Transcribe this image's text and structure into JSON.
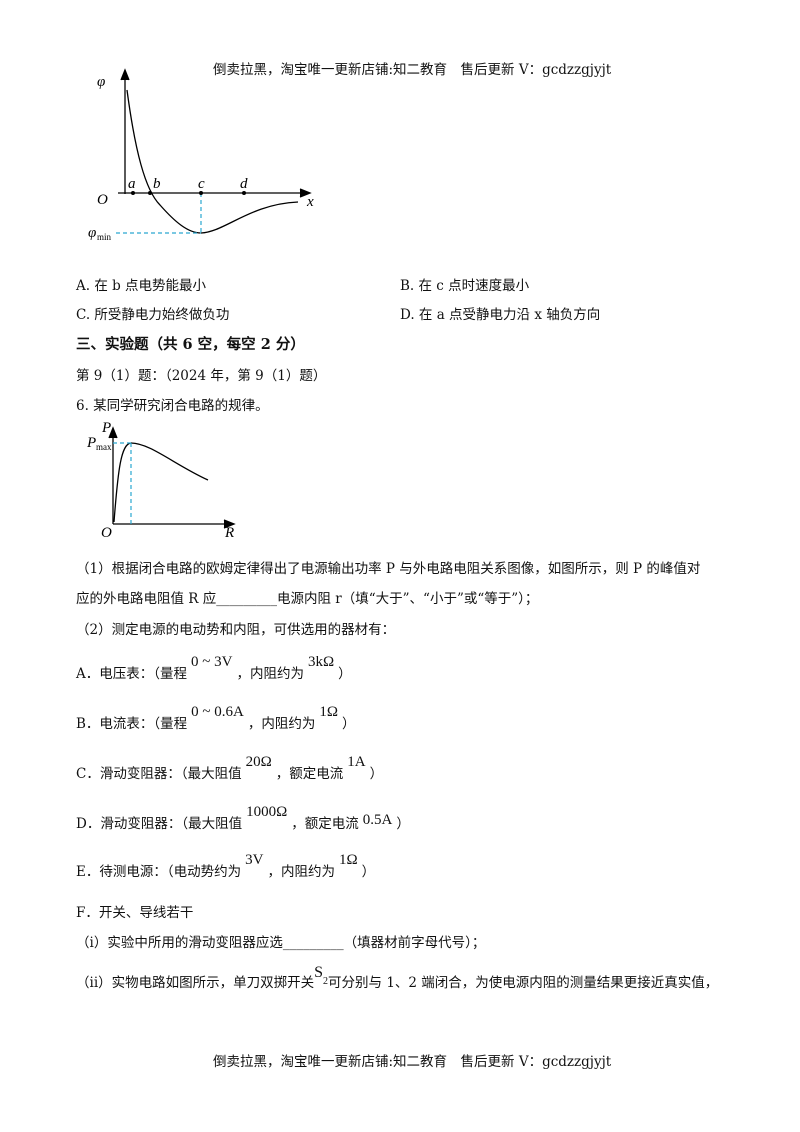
{
  "header": "倒卖拉黑，淘宝唯一更新店铺:知二教育　售后更新 V：gcdzzgjyjt",
  "figure1": {
    "axis_y": "φ",
    "origin": "O",
    "points": [
      "a",
      "b",
      "c",
      "d"
    ],
    "axis_x": "x",
    "min_label": "φ",
    "min_sub": "min"
  },
  "options": [
    "A. 在 b 点电势能最小",
    "B. 在 c 点时速度最小",
    "C. 所受静电力始终做负功",
    "D. 在 a 点受静电力沿 x 轴负方向"
  ],
  "section": "三、实验题（共 6 空，每空 2 分）",
  "source": "第 9（1）题：（2024 年，第 9（1）题）",
  "question": "6. 某同学研究闭合电路的规律。",
  "figure2": {
    "axis_y": "P",
    "max_label": "P",
    "max_sub": "max",
    "origin": "O",
    "axis_x": "R"
  },
  "part1": [
    "（1）根据闭合电路的欧姆定律得出了电源输出功率 P 与外电路电阻关系图像，如图所示，则 P 的峰值对",
    "应的外电路电阻值 R 应_________电源内阻 r（填“大于”、“小于”或“等于”）；"
  ],
  "part2": "（2）测定电源的电动势和内阻，可供选用的器材有：",
  "equipment": [
    {
      "text": "A．电压表：（量程",
      "m1": "0 ~ 3V",
      "mid": "，内阻约为",
      "m2": "3kΩ",
      "end": "）"
    },
    {
      "text": "B．电流表：（量程",
      "m1": "0 ~ 0.6A",
      "mid": "，内阻约为",
      "m2": "1Ω",
      "end": "）"
    },
    {
      "text": "C．滑动变阻器：（最大阻值",
      "m1": "20Ω",
      "mid": "，额定电流",
      "m2": "1A",
      "end": "）"
    },
    {
      "text": "D．滑动变阻器：（最大阻值",
      "m1": "1000Ω",
      "mid": "，额定电流",
      "m2": "0.5A",
      "end": "）"
    },
    {
      "text": "E．待测电源：（电动势约为",
      "m1": "3V",
      "mid": "，内阻约为",
      "m2": "1Ω",
      "end": "）"
    }
  ],
  "equipment_f": "F．开关、导线若干",
  "sub_i": "（i）实验中所用的滑动变阻器应选_________（填器材前字母代号）；",
  "sub_ii": {
    "before": "（ii）实物电路如图所示，单刀双掷开关",
    "switch": "S",
    "sub": "2",
    "after": "可分别与 1、2 端闭合，为使电源内阻的测量结果更接近真实值，"
  },
  "footer": "倒卖拉黑，淘宝唯一更新店铺:知二教育　售后更新 V：gcdzzgjyjt"
}
